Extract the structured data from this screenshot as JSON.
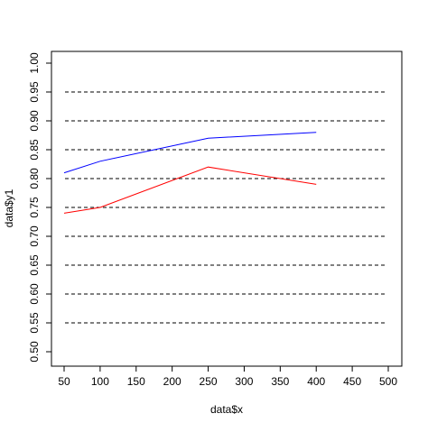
{
  "chart_data": {
    "type": "line",
    "title": "",
    "xlabel": "data$x",
    "ylabel": "data$y1",
    "xlim": [
      50,
      500
    ],
    "ylim": [
      0.5,
      1.0
    ],
    "x_ticks": [
      50,
      100,
      150,
      200,
      250,
      300,
      350,
      400,
      450,
      500
    ],
    "x_tick_labels": [
      "50",
      "100",
      "150",
      "200",
      "250",
      "300",
      "350",
      "400",
      "450",
      "500"
    ],
    "y_ticks": [
      0.5,
      0.55,
      0.6,
      0.65,
      0.7,
      0.75,
      0.8,
      0.85,
      0.9,
      0.95,
      1.0
    ],
    "y_tick_labels": [
      "0.50",
      "0.55",
      "0.60",
      "0.65",
      "0.70",
      "0.75",
      "0.80",
      "0.85",
      "0.90",
      "0.95",
      "1.00"
    ],
    "reference_lines": {
      "orientation": "horizontal",
      "style": "dashed",
      "color": "#000000",
      "values": [
        0.55,
        0.6,
        0.65,
        0.7,
        0.75,
        0.8,
        0.85,
        0.9,
        0.95
      ]
    },
    "series": [
      {
        "color": "#0000ff",
        "x": [
          50,
          100,
          250,
          400
        ],
        "y": [
          0.81,
          0.83,
          0.87,
          0.88
        ]
      },
      {
        "color": "#ff0000",
        "x": [
          50,
          100,
          250,
          400
        ],
        "y": [
          0.74,
          0.75,
          0.82,
          0.79
        ]
      }
    ],
    "grid": false,
    "legend": "none"
  }
}
